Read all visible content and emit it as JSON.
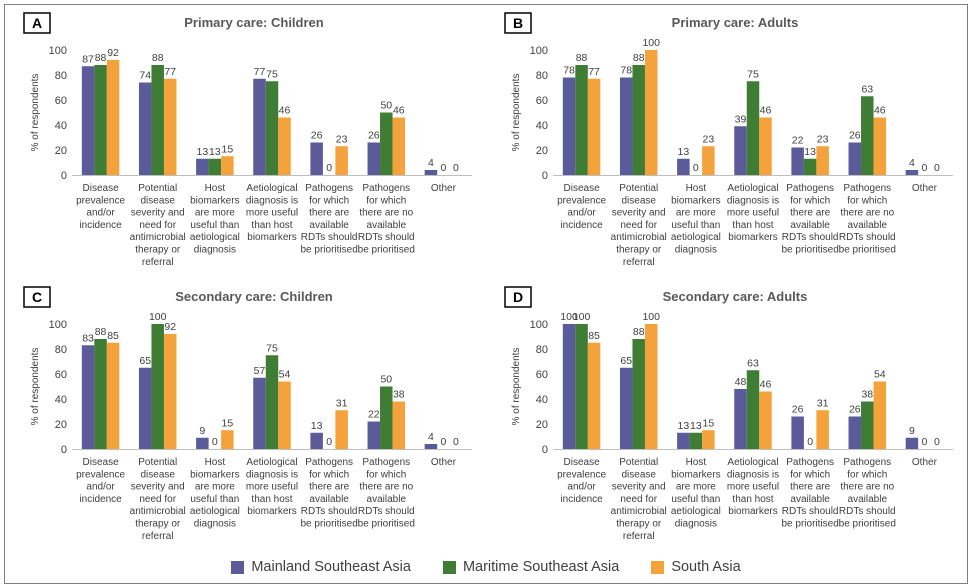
{
  "colors": {
    "mainland": "#5b5b9a",
    "maritime": "#3e7d33",
    "south": "#f4a23c"
  },
  "legend": [
    {
      "label": "Mainland Southeast Asia",
      "color": "#5b5b9a"
    },
    {
      "label": "Maritime Southeast Asia",
      "color": "#3e7d33"
    },
    {
      "label": "South Asia",
      "color": "#f4a23c"
    }
  ],
  "chart_data": [
    {
      "panel": "A",
      "type": "bar",
      "title": "Primary care: Children",
      "ylabel": "% of respondents",
      "ylim": [
        0,
        100
      ],
      "yticks": [
        0,
        20,
        40,
        60,
        80,
        100
      ],
      "categories": [
        [
          "Disease",
          "prevalence",
          "and/or",
          "incidence"
        ],
        [
          "Potential",
          "disease",
          "severity and",
          "need for",
          "antimicrobial",
          "therapy or",
          "referral"
        ],
        [
          "Host",
          "biomarkers",
          "are more",
          "useful than",
          "aetiological",
          "diagnosis"
        ],
        [
          "Aetiological",
          "diagnosis is",
          "more useful",
          "than host",
          "biomarkers"
        ],
        [
          "Pathogens",
          "for which",
          "there are",
          "available",
          "RDTs should",
          "be prioritised"
        ],
        [
          "Pathogens",
          "for which",
          "there are no",
          "available",
          "RDTs should",
          "be prioritised"
        ],
        [
          "Other"
        ]
      ],
      "series": [
        {
          "name": "Mainland Southeast Asia",
          "values": [
            87,
            74,
            13,
            77,
            26,
            26,
            4
          ]
        },
        {
          "name": "Maritime Southeast Asia",
          "values": [
            88,
            88,
            13,
            75,
            0,
            50,
            0
          ]
        },
        {
          "name": "South Asia",
          "values": [
            92,
            77,
            15,
            46,
            23,
            46,
            0
          ]
        }
      ]
    },
    {
      "panel": "B",
      "type": "bar",
      "title": "Primary care: Adults",
      "ylabel": "% of respondents",
      "ylim": [
        0,
        100
      ],
      "yticks": [
        0,
        20,
        40,
        60,
        80,
        100
      ],
      "categories": [
        [
          "Disease",
          "prevalence",
          "and/or",
          "incidence"
        ],
        [
          "Potential",
          "disease",
          "severity and",
          "need for",
          "antimicrobial",
          "therapy or",
          "referral"
        ],
        [
          "Host",
          "biomarkers",
          "are more",
          "useful than",
          "aetiological",
          "diagnosis"
        ],
        [
          "Aetiological",
          "diagnosis is",
          "more useful",
          "than host",
          "biomarkers"
        ],
        [
          "Pathogens",
          "for which",
          "there are",
          "available",
          "RDTs should",
          "be prioritised"
        ],
        [
          "Pathogens",
          "for which",
          "there are no",
          "available",
          "RDTs should",
          "be prioritised"
        ],
        [
          "Other"
        ]
      ],
      "series": [
        {
          "name": "Mainland Southeast Asia",
          "values": [
            78,
            78,
            13,
            39,
            22,
            26,
            4
          ]
        },
        {
          "name": "Maritime Southeast Asia",
          "values": [
            88,
            88,
            0,
            75,
            13,
            63,
            0
          ]
        },
        {
          "name": "South Asia",
          "values": [
            77,
            100,
            23,
            46,
            23,
            46,
            0
          ]
        }
      ]
    },
    {
      "panel": "C",
      "type": "bar",
      "title": "Secondary care: Children",
      "ylabel": "% of respondents",
      "ylim": [
        0,
        100
      ],
      "yticks": [
        0,
        20,
        40,
        60,
        80,
        100
      ],
      "categories": [
        [
          "Disease",
          "prevalence",
          "and/or",
          "incidence"
        ],
        [
          "Potential",
          "disease",
          "severity and",
          "need for",
          "antimicrobial",
          "therapy or",
          "referral"
        ],
        [
          "Host",
          "biomarkers",
          "are more",
          "useful than",
          "aetiological",
          "diagnosis"
        ],
        [
          "Aetiological",
          "diagnosis is",
          "more useful",
          "than host",
          "biomarkers"
        ],
        [
          "Pathogens",
          "for which",
          "there are",
          "available",
          "RDTs should",
          "be prioritised"
        ],
        [
          "Pathogens",
          "for which",
          "there are no",
          "available",
          "RDTs should",
          "be prioritised"
        ],
        [
          "Other"
        ]
      ],
      "series": [
        {
          "name": "Mainland Southeast Asia",
          "values": [
            83,
            65,
            9,
            57,
            13,
            22,
            4
          ]
        },
        {
          "name": "Maritime Southeast Asia",
          "values": [
            88,
            100,
            0,
            75,
            0,
            50,
            0
          ]
        },
        {
          "name": "South Asia",
          "values": [
            85,
            92,
            15,
            54,
            31,
            38,
            0
          ]
        }
      ]
    },
    {
      "panel": "D",
      "type": "bar",
      "title": "Secondary care: Adults",
      "ylabel": "% of respondents",
      "ylim": [
        0,
        100
      ],
      "yticks": [
        0,
        20,
        40,
        60,
        80,
        100
      ],
      "categories": [
        [
          "Disease",
          "prevalence",
          "and/or",
          "incidence"
        ],
        [
          "Potential",
          "disease",
          "severity and",
          "need for",
          "antimicrobial",
          "therapy or",
          "referral"
        ],
        [
          "Host",
          "biomarkers",
          "are more",
          "useful than",
          "aetiological",
          "diagnosis"
        ],
        [
          "Aetiological",
          "diagnosis is",
          "more useful",
          "than host",
          "biomarkers"
        ],
        [
          "Pathogens",
          "for which",
          "there are",
          "available",
          "RDTs should",
          "be prioritised"
        ],
        [
          "Pathogens",
          "for which",
          "there are no",
          "available",
          "RDTs should",
          "be prioritised"
        ],
        [
          "Other"
        ]
      ],
      "series": [
        {
          "name": "Mainland Southeast Asia",
          "values": [
            100,
            65,
            13,
            48,
            26,
            26,
            9
          ]
        },
        {
          "name": "Maritime Southeast Asia",
          "values": [
            100,
            88,
            13,
            63,
            0,
            38,
            0
          ]
        },
        {
          "name": "South Asia",
          "values": [
            85,
            100,
            15,
            46,
            31,
            54,
            0
          ]
        }
      ]
    }
  ]
}
